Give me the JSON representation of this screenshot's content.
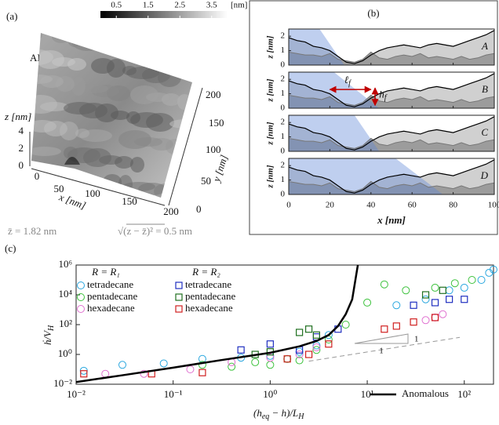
{
  "chart_data": [
    {
      "type": "surface",
      "panel": "(a)",
      "title": "AFM",
      "colorbar": {
        "clim": [
          0,
          4
        ],
        "ticks": [
          0.5,
          1.5,
          2.5,
          3.5
        ],
        "unit": "[nm]"
      },
      "xlabel": "x [nm]",
      "xticks": [
        0,
        50,
        100,
        150,
        200
      ],
      "ylabel": "y [nm]",
      "yticks": [
        0,
        50,
        100,
        150,
        200
      ],
      "zlabel": "z [nm]",
      "zticks": [
        0,
        2,
        4
      ],
      "annotations": [
        "z̄ = 1.82 nm",
        "√(z − z̄)² = 0.5 nm"
      ]
    },
    {
      "type": "profile",
      "panel": "(b)",
      "xlabel": "x [nm]",
      "ylabel": "z [nm]",
      "xlim": [
        0,
        100
      ],
      "xticks": [
        0,
        20,
        40,
        60,
        80,
        100
      ],
      "ylim": [
        0,
        2.5
      ],
      "yticks": [
        0,
        1,
        2
      ],
      "x": [
        0,
        4,
        8,
        12,
        16,
        20,
        24,
        28,
        32,
        36,
        40,
        44,
        48,
        52,
        56,
        60,
        64,
        68,
        72,
        76,
        80,
        84,
        88,
        92,
        96,
        100
      ],
      "surface": [
        1.9,
        1.7,
        1.6,
        1.3,
        1.2,
        1.0,
        0.6,
        0.2,
        0.1,
        0.3,
        0.7,
        1.0,
        1.2,
        1.3,
        1.4,
        1.3,
        1.2,
        1.4,
        1.5,
        1.4,
        1.3,
        1.5,
        1.7,
        1.9,
        2.1,
        2.4
      ],
      "substrate": [
        0.9,
        0.8,
        0.7,
        0.7,
        0.6,
        0.8,
        0.4,
        0.3,
        0.2,
        0.4,
        0.9,
        0.5,
        0.4,
        0.6,
        0.7,
        0.6,
        0.8,
        0.5,
        0.6,
        0.5,
        0.4,
        0.6,
        0.4,
        0.5,
        0.7,
        0.8
      ],
      "subplots": [
        {
          "label": "A",
          "front": [
            15,
            27
          ]
        },
        {
          "label": "B",
          "front": [
            22,
            44
          ]
        },
        {
          "label": "C",
          "front": [
            32,
            44
          ]
        },
        {
          "label": "D",
          "front": [
            52,
            75
          ]
        }
      ],
      "annotations": {
        "length": [
          "ℓ",
          "f"
        ],
        "height": [
          "h",
          "f"
        ]
      }
    },
    {
      "type": "scatter",
      "panel": "(c)",
      "log_x": true,
      "log_y": true,
      "xlabel": [
        "(h",
        "eq",
        " − h)/L",
        "H"
      ],
      "ylabel": [
        "ḣ/V",
        "H"
      ],
      "xlim": [
        0.01,
        200
      ],
      "ylim": [
        0.01,
        1000000
      ],
      "xticks": [
        {
          "value": 0.01,
          "label": "10⁻²"
        },
        {
          "value": 0.1,
          "label": "10⁻¹"
        },
        {
          "value": 1,
          "label": "10⁰"
        },
        {
          "value": 10,
          "label": "10¹"
        },
        {
          "value": 100,
          "label": "10²"
        }
      ],
      "yticks": [
        {
          "value": 0.01,
          "label": "10⁻²"
        },
        {
          "value": 1,
          "label": "10⁰"
        },
        {
          "value": 100,
          "label": "10²"
        },
        {
          "value": 10000,
          "label": "10⁴"
        },
        {
          "value": 1000000,
          "label": "10⁶"
        }
      ],
      "legend_titles": [
        "R = R₁",
        "R = R₂"
      ],
      "series": [
        {
          "name": "tetradecane",
          "group": 0,
          "marker": "circle",
          "color": "#2aa7df",
          "x": [
            0.012,
            0.03,
            0.08,
            0.2,
            0.5,
            1,
            2,
            3,
            4,
            20,
            40,
            70,
            100,
            150,
            180,
            200
          ],
          "values": [
            0.08,
            0.2,
            0.25,
            0.5,
            0.6,
            0.8,
            1.5,
            4,
            20,
            2000,
            5000,
            20000,
            30000,
            100000,
            300000,
            500000
          ]
        },
        {
          "name": "pentadecane",
          "group": 0,
          "marker": "circle",
          "color": "#3cc23c",
          "x": [
            0.2,
            0.4,
            0.7,
            1,
            1.5,
            2,
            3,
            4,
            6,
            10,
            15,
            25,
            50,
            80,
            120
          ],
          "values": [
            0.2,
            0.15,
            0.3,
            0.2,
            0.5,
            0.4,
            2,
            10,
            100,
            3000,
            50000,
            20000,
            30000,
            60000,
            100000
          ]
        },
        {
          "name": "hexadecane",
          "group": 0,
          "marker": "circle",
          "color": "#e070d0",
          "x": [
            0.02,
            0.05,
            0.15,
            0.4,
            1,
            2,
            3,
            40,
            50,
            60
          ],
          "values": [
            0.05,
            0.05,
            0.1,
            0.3,
            0.6,
            1,
            3,
            200,
            300,
            500
          ]
        },
        {
          "name": "tetradecane",
          "group": 1,
          "marker": "square",
          "color": "#2030c0",
          "x": [
            0.5,
            1,
            2,
            3,
            5,
            30,
            50,
            70,
            100
          ],
          "values": [
            2,
            5,
            2,
            15,
            50,
            2000,
            3000,
            5000,
            5000
          ]
        },
        {
          "name": "pentadecane",
          "group": 1,
          "marker": "square",
          "color": "#207020",
          "x": [
            0.7,
            1,
            2,
            2.5,
            3,
            40,
            60
          ],
          "values": [
            1,
            1.5,
            30,
            50,
            20,
            10000,
            20000
          ]
        },
        {
          "name": "hexadecane",
          "group": 1,
          "marker": "square",
          "color": "#d02020",
          "x": [
            0.012,
            0.06,
            0.2,
            1.5,
            2.5,
            4,
            15,
            20,
            30,
            50
          ],
          "values": [
            0.05,
            0.05,
            0.06,
            0.5,
            1,
            5,
            50,
            80,
            150,
            300
          ]
        },
        {
          "name": "Anomalous",
          "type": "line",
          "color": "#000000",
          "x": [
            0.01,
            0.03,
            0.1,
            0.3,
            1,
            2,
            3,
            4,
            5,
            6,
            7,
            8
          ],
          "values": [
            0.014,
            0.04,
            0.13,
            0.4,
            1.3,
            3.5,
            8,
            20,
            80,
            500,
            5000,
            1000000
          ]
        }
      ],
      "reference_line": {
        "x": [
          2.5,
          90
        ],
        "values": [
          0.35,
          14
        ],
        "color": "#999999"
      },
      "slope_labels": [
        "1",
        "1"
      ]
    }
  ]
}
